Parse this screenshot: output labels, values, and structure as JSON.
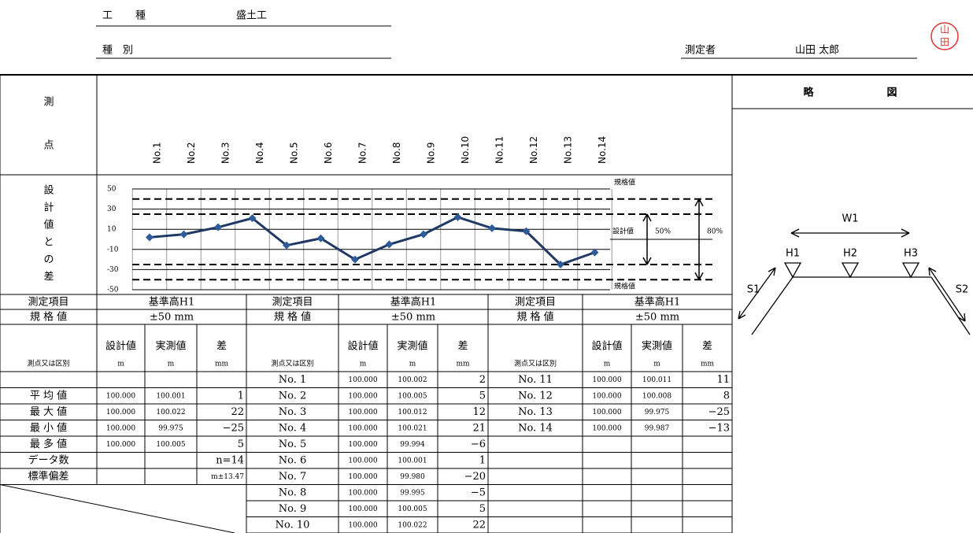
{
  "header": {
    "work_type_label": "工　種",
    "work_type": "盛土工",
    "category_label": "種　別",
    "measurer_label": "測定者",
    "measurer": "山田 太郎",
    "seal": [
      "山",
      "田"
    ]
  },
  "chart_section": {
    "row_label_top": "測",
    "row_label_bottom": "点",
    "y_label": "設計値との差"
  },
  "chart_data": {
    "type": "line",
    "categories": [
      "No.1",
      "No.2",
      "No.3",
      "No.4",
      "No.5",
      "No.6",
      "No.7",
      "No.8",
      "No.9",
      "No.10",
      "No.11",
      "No.12",
      "No.13",
      "No.14"
    ],
    "values": [
      2,
      5,
      12,
      21,
      -6,
      1,
      -20,
      -5,
      5,
      22,
      11,
      8,
      -25,
      -13
    ],
    "color": "#1f3864",
    "marker_color": "#2e5b9a",
    "ylim": [
      -50,
      50
    ],
    "yticks": [
      50,
      30,
      10,
      -10,
      -30,
      -50
    ],
    "annotations": {
      "upper_limit": "規格値",
      "design_value": "設計値",
      "inner_band": "50%",
      "outer_band": "80%",
      "lower_limit": "規格値"
    }
  },
  "sketch": {
    "title": "略　図",
    "labels": {
      "w1": "W1",
      "h1": "H1",
      "h2": "H2",
      "h3": "H3",
      "s1": "S1",
      "s2": "S2"
    }
  },
  "table": {
    "blocks": [
      {
        "item_label": "測定項目",
        "item": "基準高H1",
        "spec_label": "規 格 値",
        "spec": "±50 mm",
        "col_headers": [
          "設計値",
          "実測値",
          "差"
        ],
        "units_label": "測点又は区別",
        "units": [
          "m",
          "m",
          "mm"
        ],
        "rows": [
          {
            "label": "平 均 値",
            "design": "100.000",
            "measured": "100.001",
            "diff": "1"
          },
          {
            "label": "最 大 値",
            "design": "100.000",
            "measured": "100.022",
            "diff": "22"
          },
          {
            "label": "最 小 値",
            "design": "100.000",
            "measured": "99.975",
            "diff": "−25"
          },
          {
            "label": "最 多 値",
            "design": "100.000",
            "measured": "100.005",
            "diff": "5"
          },
          {
            "label": "データ数",
            "diff": "n=14"
          },
          {
            "label": "標準偏差",
            "diff": "m±13.47"
          }
        ]
      },
      {
        "item_label": "測定項目",
        "item": "基準高H1",
        "spec_label": "規 格 値",
        "spec": "±50 mm",
        "col_headers": [
          "設計値",
          "実測値",
          "差"
        ],
        "units_label": "測点又は区別",
        "units": [
          "m",
          "m",
          "mm"
        ],
        "rows": [
          {
            "label": "No. 1",
            "design": "100.000",
            "measured": "100.002",
            "diff": "2"
          },
          {
            "label": "No. 2",
            "design": "100.000",
            "measured": "100.005",
            "diff": "5"
          },
          {
            "label": "No. 3",
            "design": "100.000",
            "measured": "100.012",
            "diff": "12"
          },
          {
            "label": "No. 4",
            "design": "100.000",
            "measured": "100.021",
            "diff": "21"
          },
          {
            "label": "No. 5",
            "design": "100.000",
            "measured": "99.994",
            "diff": "−6"
          },
          {
            "label": "No. 6",
            "design": "100.000",
            "measured": "100.001",
            "diff": "1"
          },
          {
            "label": "No. 7",
            "design": "100.000",
            "measured": "99.980",
            "diff": "−20"
          },
          {
            "label": "No. 8",
            "design": "100.000",
            "measured": "99.995",
            "diff": "−5"
          },
          {
            "label": "No. 9",
            "design": "100.000",
            "measured": "100.005",
            "diff": "5"
          },
          {
            "label": "No. 10",
            "design": "100.000",
            "measured": "100.022",
            "diff": "22"
          }
        ]
      },
      {
        "item_label": "測定項目",
        "item": "基準高H1",
        "spec_label": "規 格 値",
        "spec": "±50 mm",
        "col_headers": [
          "設計値",
          "実測値",
          "差"
        ],
        "units_label": "測点又は区別",
        "units": [
          "m",
          "m",
          "mm"
        ],
        "rows": [
          {
            "label": "No. 11",
            "design": "100.000",
            "measured": "100.011",
            "diff": "11"
          },
          {
            "label": "No. 12",
            "design": "100.000",
            "measured": "100.008",
            "diff": "8"
          },
          {
            "label": "No. 13",
            "design": "100.000",
            "measured": "99.975",
            "diff": "−25"
          },
          {
            "label": "No. 14",
            "design": "100.000",
            "measured": "99.987",
            "diff": "−13"
          }
        ]
      }
    ]
  }
}
